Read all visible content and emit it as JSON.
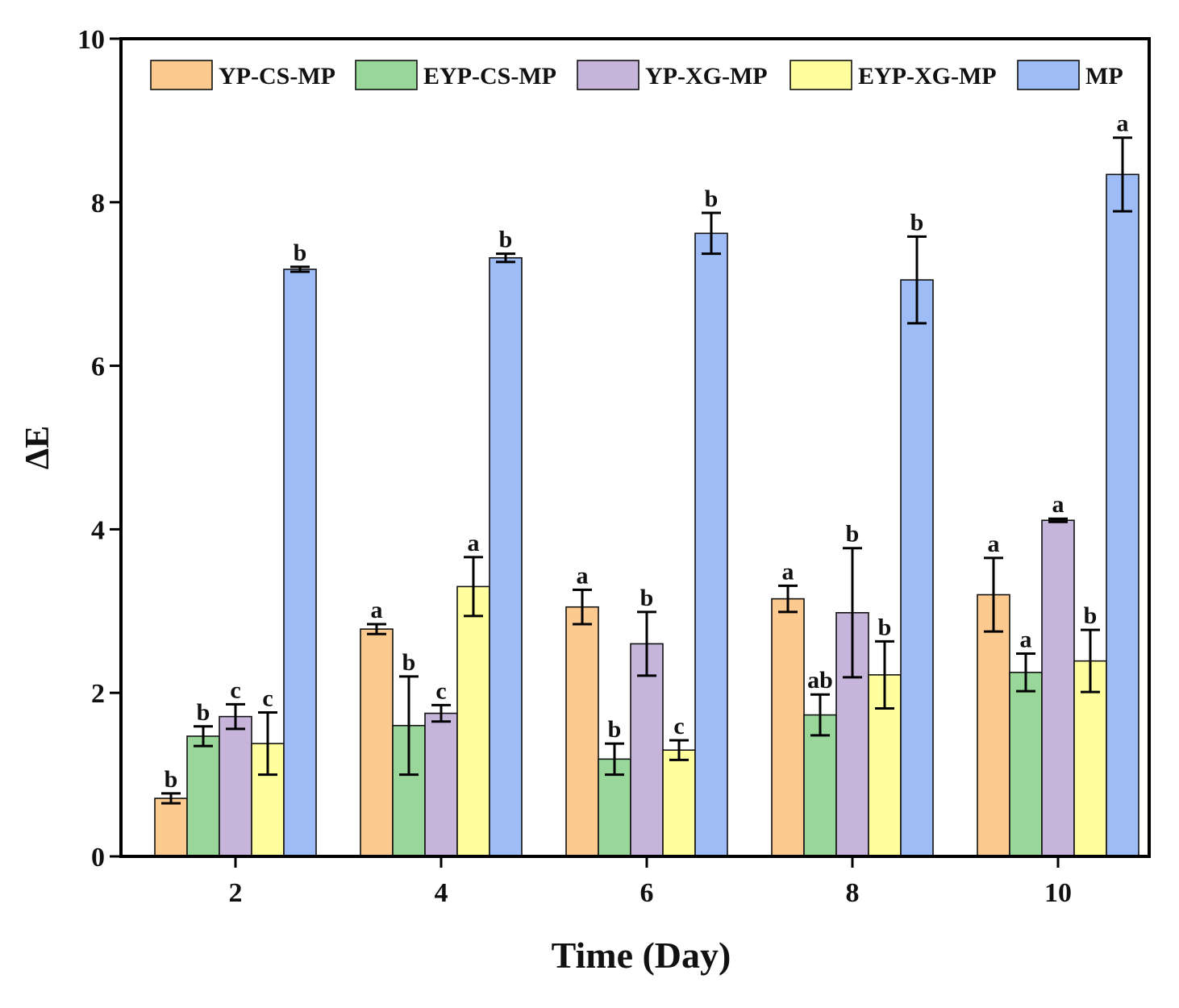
{
  "chart_data": {
    "type": "bar",
    "title": "",
    "xlabel": "Time (Day)",
    "ylabel": "ΔE",
    "ylim": [
      0,
      10
    ],
    "yticks": [
      "0",
      "2",
      "4",
      "6",
      "8",
      "10"
    ],
    "categories": [
      "2",
      "4",
      "6",
      "8",
      "10"
    ],
    "legend_position": "top",
    "series": [
      {
        "name": "YP-CS-MP",
        "color": "#fcc98f",
        "values": [
          0.71,
          2.78,
          3.05,
          3.15,
          3.2
        ],
        "errors": [
          0.06,
          0.06,
          0.21,
          0.16,
          0.45
        ],
        "labels": [
          "b",
          "a",
          "a",
          "a",
          "a"
        ]
      },
      {
        "name": "EYP-CS-MP",
        "color": "#98d69a",
        "values": [
          1.47,
          1.6,
          1.19,
          1.73,
          2.25
        ],
        "errors": [
          0.12,
          0.6,
          0.19,
          0.25,
          0.23
        ],
        "labels": [
          "b",
          "b",
          "b",
          "ab",
          "a"
        ]
      },
      {
        "name": "YP-XG-MP",
        "color": "#c6b4da",
        "values": [
          1.71,
          1.75,
          2.6,
          2.98,
          4.11
        ],
        "errors": [
          0.15,
          0.1,
          0.39,
          0.79,
          0.02
        ],
        "labels": [
          "c",
          "c",
          "b",
          "b",
          "a"
        ]
      },
      {
        "name": "EYP-XG-MP",
        "color": "#ffff9e",
        "values": [
          1.38,
          3.3,
          1.3,
          2.22,
          2.39
        ],
        "errors": [
          0.38,
          0.36,
          0.12,
          0.41,
          0.38
        ],
        "labels": [
          "c",
          "a",
          "c",
          "b",
          "b"
        ]
      },
      {
        "name": "MP",
        "color": "#9ebcf5",
        "values": [
          7.18,
          7.32,
          7.62,
          7.05,
          8.34
        ],
        "errors": [
          0.03,
          0.05,
          0.25,
          0.53,
          0.45
        ],
        "labels": [
          "b",
          "b",
          "b",
          "b",
          "a"
        ]
      }
    ]
  }
}
